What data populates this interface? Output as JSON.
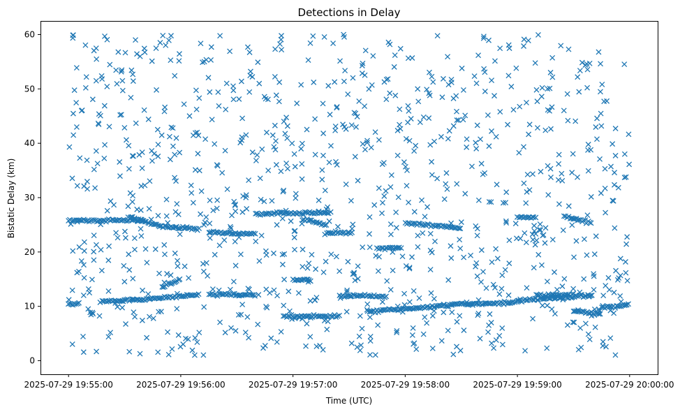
{
  "chart_data": {
    "type": "scatter",
    "title": "Detections in Delay",
    "xlabel": "Time (UTC)",
    "ylabel": "Bistatic Delay (km)",
    "x_time_range": [
      "2025-07-29 19:54:45",
      "2025-07-29 20:00:15"
    ],
    "ylim": [
      -2.5,
      62.5
    ],
    "x_ticks": [
      "2025-07-29 19:55:00",
      "2025-07-29 19:56:00",
      "2025-07-29 19:57:00",
      "2025-07-29 19:58:00",
      "2025-07-29 19:59:00",
      "2025-07-29 20:00:00"
    ],
    "y_ticks": [
      0,
      10,
      20,
      30,
      40,
      50,
      60
    ],
    "marker": "x",
    "grid": false,
    "colors": {
      "series": "#1f77b4"
    },
    "data_window": {
      "start": "2025-07-29 19:55:00",
      "end": "2025-07-29 20:00:00"
    },
    "tracks": [
      {
        "time_range": [
          "19:55:00",
          "19:55:40"
        ],
        "delay_start": 25.8,
        "delay_end": 25.8
      },
      {
        "time_range": [
          "19:55:32",
          "19:55:49"
        ],
        "delay_start": 26.5,
        "delay_end": 24.8
      },
      {
        "time_range": [
          "19:55:49",
          "19:56:10"
        ],
        "delay_start": 24.8,
        "delay_end": 24.2
      },
      {
        "time_range": [
          "19:56:15",
          "19:56:40"
        ],
        "delay_start": 23.6,
        "delay_end": 23.3
      },
      {
        "time_range": [
          "19:56:40",
          "19:57:20"
        ],
        "delay_start": 27.0,
        "delay_end": 27.3
      },
      {
        "time_range": [
          "19:57:05",
          "19:57:18"
        ],
        "delay_start": 26.0,
        "delay_end": 25.0
      },
      {
        "time_range": [
          "19:57:18",
          "19:57:32"
        ],
        "delay_start": 23.5,
        "delay_end": 23.5
      },
      {
        "time_range": [
          "19:57:45",
          "19:57:58"
        ],
        "delay_start": 20.7,
        "delay_end": 20.7
      },
      {
        "time_range": [
          "19:58:00",
          "19:58:30"
        ],
        "delay_start": 25.3,
        "delay_end": 24.4
      },
      {
        "time_range": [
          "19:59:00",
          "19:59:10"
        ],
        "delay_start": 26.4,
        "delay_end": 26.4
      },
      {
        "time_range": [
          "19:59:25",
          "19:59:40"
        ],
        "delay_start": 26.5,
        "delay_end": 25.3
      },
      {
        "time_range": [
          "19:55:00",
          "19:55:06"
        ],
        "delay_start": 10.4,
        "delay_end": 10.4
      },
      {
        "time_range": [
          "19:55:18",
          "19:55:40"
        ],
        "delay_start": 11.0,
        "delay_end": 11.2
      },
      {
        "time_range": [
          "19:55:40",
          "19:56:10"
        ],
        "delay_start": 11.3,
        "delay_end": 12.2
      },
      {
        "time_range": [
          "19:55:50",
          "19:56:00"
        ],
        "delay_start": 13.5,
        "delay_end": 15.0
      },
      {
        "time_range": [
          "19:56:15",
          "19:56:40"
        ],
        "delay_start": 12.2,
        "delay_end": 12.0
      },
      {
        "time_range": [
          "19:56:55",
          "19:57:25"
        ],
        "delay_start": 8.2,
        "delay_end": 8.2
      },
      {
        "time_range": [
          "19:57:00",
          "19:57:10"
        ],
        "delay_start": 14.8,
        "delay_end": 14.9
      },
      {
        "time_range": [
          "19:57:25",
          "19:57:50"
        ],
        "delay_start": 12.0,
        "delay_end": 11.8
      },
      {
        "time_range": [
          "19:57:40",
          "19:58:25"
        ],
        "delay_start": 9.0,
        "delay_end": 10.2
      },
      {
        "time_range": [
          "19:58:25",
          "19:59:00"
        ],
        "delay_start": 10.3,
        "delay_end": 10.8
      },
      {
        "time_range": [
          "19:59:00",
          "19:59:40"
        ],
        "delay_start": 11.0,
        "delay_end": 12.0
      },
      {
        "time_range": [
          "19:59:10",
          "19:59:30"
        ],
        "delay_start": 12.0,
        "delay_end": 12.2
      },
      {
        "time_range": [
          "19:59:30",
          "19:59:45"
        ],
        "delay_start": 9.2,
        "delay_end": 8.5
      },
      {
        "time_range": [
          "19:59:45",
          "20:00:00"
        ],
        "delay_start": 9.8,
        "delay_end": 10.2
      }
    ],
    "clutter": {
      "count": 1000,
      "delay_range": [
        1,
        60
      ],
      "seed": 7
    },
    "track_noise_km": 0.35
  }
}
